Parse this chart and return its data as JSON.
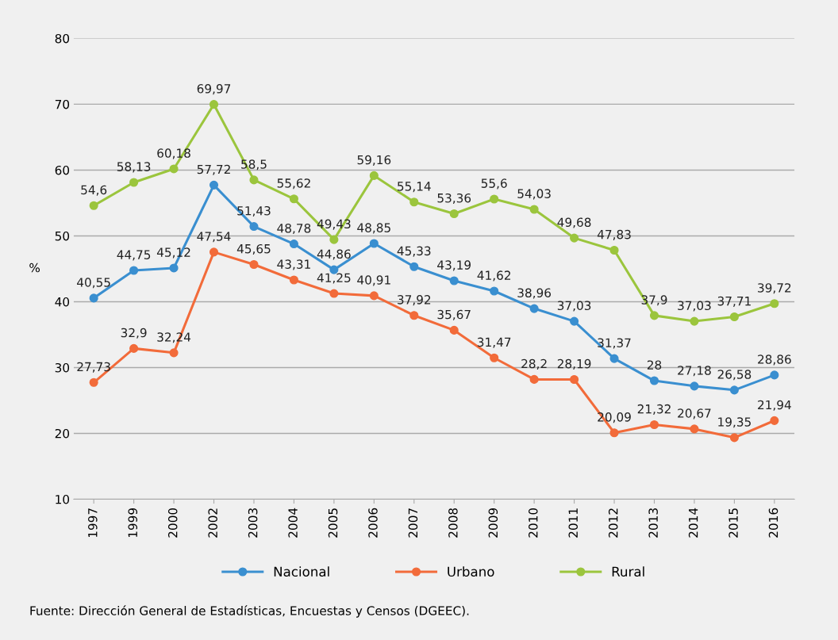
{
  "chart_data": {
    "type": "line",
    "ylabel": "%",
    "categories": [
      "1997",
      "1999",
      "2000",
      "2002",
      "2003",
      "2004",
      "2005",
      "2006",
      "2007",
      "2008",
      "2009",
      "2010",
      "2011",
      "2012",
      "2013",
      "2014",
      "2015",
      "2016"
    ],
    "series": [
      {
        "name": "Nacional",
        "color": "#3a8fd0",
        "values": [
          40.55,
          44.75,
          45.12,
          57.72,
          51.43,
          48.78,
          44.86,
          48.85,
          45.33,
          43.19,
          41.62,
          38.96,
          37.03,
          31.37,
          28,
          27.18,
          26.58,
          28.86
        ],
        "value_labels": [
          "40,55",
          "44,75",
          "45,12",
          "57,72",
          "51,43",
          "48,78",
          "44,86",
          "48,85",
          "45,33",
          "43,19",
          "41,62",
          "38,96",
          "37,03",
          "31,37",
          "28",
          "27,18",
          "26,58",
          "28,86"
        ]
      },
      {
        "name": "Urbano",
        "color": "#f26b3a",
        "values": [
          27.73,
          32.9,
          32.24,
          47.54,
          45.65,
          43.31,
          41.25,
          40.91,
          37.92,
          35.67,
          31.47,
          28.2,
          28.19,
          20.09,
          21.32,
          20.67,
          19.35,
          21.94
        ],
        "value_labels": [
          "27,73",
          "32,9",
          "32,24",
          "47,54",
          "45,65",
          "43,31",
          "41,25",
          "40,91",
          "37,92",
          "35,67",
          "31,47",
          "28,2",
          "28,19",
          "20,09",
          "21,32",
          "20,67",
          "19,35",
          "21,94"
        ]
      },
      {
        "name": "Rural",
        "color": "#9bc53d",
        "values": [
          54.6,
          58.13,
          60.18,
          69.97,
          58.5,
          55.62,
          49.43,
          59.16,
          55.14,
          53.36,
          55.6,
          54.03,
          49.68,
          47.83,
          37.9,
          37.03,
          37.71,
          39.72
        ],
        "value_labels": [
          "54,6",
          "58,13",
          "60,18",
          "69,97",
          "58,5",
          "55,62",
          "49,43",
          "59,16",
          "55,14",
          "53,36",
          "55,6",
          "54,03",
          "49,68",
          "47,83",
          "37,9",
          "37,03",
          "37,71",
          "39,72"
        ]
      }
    ],
    "ylim": [
      10,
      80
    ],
    "yticks": [
      10,
      20,
      30,
      40,
      50,
      60,
      70,
      80
    ],
    "grid": "y",
    "legend": "bottom",
    "marker": "circle",
    "line_style": "solid",
    "annotations": [
      "Fuente: Dirección General de Estadísticas, Encuestas y Censos (DGEEC)."
    ]
  }
}
